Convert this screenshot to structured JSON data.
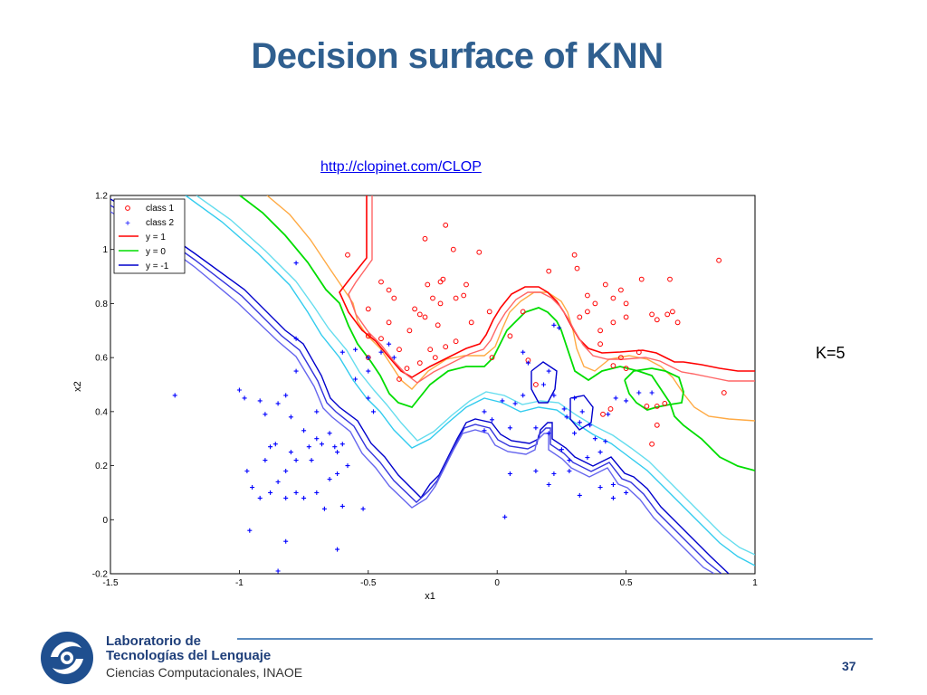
{
  "slide": {
    "title": "Decision surface of KNN",
    "link": "http://clopinet.com/CLOP",
    "k_label": "K=5",
    "page_number": "37"
  },
  "footer": {
    "org_line1": "Laboratorio de",
    "org_line2": "Tecnologías del Lenguaje",
    "org_line3": "Ciencias Computacionales, INAOE"
  },
  "chart_data": {
    "type": "scatter",
    "xlabel": "x1",
    "ylabel": "x2",
    "xlim": [
      -1.5,
      1
    ],
    "ylim": [
      -0.2,
      1.2
    ],
    "xticks": [
      "-1.5",
      "-1",
      "-0.5",
      "0",
      "0.5",
      "1"
    ],
    "yticks": [
      "-0.2",
      "0",
      "0.2",
      "0.4",
      "0.6",
      "0.8",
      "1",
      "1.2"
    ],
    "legend_position": "top-left",
    "legend": [
      {
        "label": "class 1",
        "marker": "o",
        "color": "#ff0000"
      },
      {
        "label": "class 2",
        "marker": "+",
        "color": "#0000ff"
      },
      {
        "label": "y = 1",
        "marker": "line",
        "color": "#ff0000"
      },
      {
        "label": "y = 0",
        "marker": "line",
        "color": "#00dd00"
      },
      {
        "label": "y = -1",
        "marker": "line",
        "color": "#0000cc"
      }
    ],
    "series": [
      {
        "name": "class 1",
        "color": "#ff0000",
        "points": [
          [
            -0.58,
            0.98
          ],
          [
            -0.28,
            1.04
          ],
          [
            -0.2,
            1.09
          ],
          [
            -0.17,
            1.0
          ],
          [
            -0.07,
            0.99
          ],
          [
            -0.45,
            0.88
          ],
          [
            -0.42,
            0.85
          ],
          [
            -0.4,
            0.82
          ],
          [
            -0.5,
            0.78
          ],
          [
            -0.42,
            0.73
          ],
          [
            -0.5,
            0.68
          ],
          [
            -0.27,
            0.87
          ],
          [
            -0.22,
            0.88
          ],
          [
            -0.21,
            0.89
          ],
          [
            -0.12,
            0.87
          ],
          [
            -0.25,
            0.82
          ],
          [
            -0.22,
            0.8
          ],
          [
            -0.16,
            0.82
          ],
          [
            -0.13,
            0.83
          ],
          [
            -0.3,
            0.76
          ],
          [
            -0.32,
            0.78
          ],
          [
            -0.28,
            0.75
          ],
          [
            -0.23,
            0.72
          ],
          [
            -0.34,
            0.7
          ],
          [
            -0.2,
            0.64
          ],
          [
            -0.26,
            0.63
          ],
          [
            -0.24,
            0.6
          ],
          [
            -0.16,
            0.66
          ],
          [
            -0.45,
            0.67
          ],
          [
            -0.5,
            0.6
          ],
          [
            -0.38,
            0.63
          ],
          [
            -0.3,
            0.58
          ],
          [
            -0.03,
            0.77
          ],
          [
            -0.1,
            0.73
          ],
          [
            -0.02,
            0.6
          ],
          [
            0.05,
            0.68
          ],
          [
            0.1,
            0.77
          ],
          [
            0.2,
            0.92
          ],
          [
            0.3,
            0.98
          ],
          [
            0.31,
            0.93
          ],
          [
            0.35,
            0.83
          ],
          [
            0.38,
            0.8
          ],
          [
            0.42,
            0.87
          ],
          [
            0.45,
            0.82
          ],
          [
            0.48,
            0.85
          ],
          [
            0.5,
            0.8
          ],
          [
            0.32,
            0.75
          ],
          [
            0.35,
            0.77
          ],
          [
            0.4,
            0.7
          ],
          [
            0.45,
            0.73
          ],
          [
            0.5,
            0.75
          ],
          [
            0.4,
            0.65
          ],
          [
            0.48,
            0.6
          ],
          [
            0.55,
            0.62
          ],
          [
            0.56,
            0.89
          ],
          [
            0.6,
            0.76
          ],
          [
            0.62,
            0.74
          ],
          [
            0.66,
            0.76
          ],
          [
            0.67,
            0.89
          ],
          [
            0.68,
            0.77
          ],
          [
            0.7,
            0.73
          ],
          [
            0.86,
            0.96
          ],
          [
            0.45,
            0.57
          ],
          [
            0.5,
            0.56
          ],
          [
            0.58,
            0.42
          ],
          [
            0.62,
            0.42
          ],
          [
            0.65,
            0.43
          ],
          [
            0.62,
            0.35
          ],
          [
            0.6,
            0.28
          ],
          [
            0.88,
            0.47
          ],
          [
            0.41,
            0.39
          ],
          [
            0.44,
            0.41
          ],
          [
            -0.38,
            0.52
          ],
          [
            -0.35,
            0.56
          ],
          [
            0.12,
            0.59
          ],
          [
            0.15,
            0.5
          ]
        ]
      },
      {
        "name": "class 2",
        "color": "#0000ff",
        "points": [
          [
            -0.78,
            0.95
          ],
          [
            -1.25,
            0.46
          ],
          [
            -1.0,
            0.48
          ],
          [
            -0.98,
            0.45
          ],
          [
            -0.92,
            0.44
          ],
          [
            -0.9,
            0.39
          ],
          [
            -0.85,
            0.43
          ],
          [
            -0.82,
            0.46
          ],
          [
            -0.8,
            0.38
          ],
          [
            -0.7,
            0.4
          ],
          [
            -0.75,
            0.33
          ],
          [
            -0.7,
            0.3
          ],
          [
            -0.68,
            0.28
          ],
          [
            -0.73,
            0.27
          ],
          [
            -0.86,
            0.28
          ],
          [
            -0.88,
            0.27
          ],
          [
            -0.8,
            0.25
          ],
          [
            -0.78,
            0.22
          ],
          [
            -0.72,
            0.22
          ],
          [
            -0.65,
            0.32
          ],
          [
            -0.63,
            0.27
          ],
          [
            -0.6,
            0.28
          ],
          [
            -0.62,
            0.25
          ],
          [
            -0.58,
            0.2
          ],
          [
            -0.62,
            0.17
          ],
          [
            -0.65,
            0.15
          ],
          [
            -0.7,
            0.1
          ],
          [
            -0.75,
            0.08
          ],
          [
            -0.78,
            0.1
          ],
          [
            -0.82,
            0.08
          ],
          [
            -0.88,
            0.1
          ],
          [
            -0.92,
            0.08
          ],
          [
            -0.95,
            0.12
          ],
          [
            -0.97,
            0.18
          ],
          [
            -0.9,
            0.22
          ],
          [
            -0.82,
            0.18
          ],
          [
            -0.85,
            0.14
          ],
          [
            -0.67,
            0.04
          ],
          [
            -0.6,
            0.05
          ],
          [
            -0.52,
            0.04
          ],
          [
            -0.62,
            -0.11
          ],
          [
            -0.82,
            -0.08
          ],
          [
            -0.96,
            -0.04
          ],
          [
            -0.85,
            -0.19
          ],
          [
            -0.78,
            0.55
          ],
          [
            -0.78,
            0.67
          ],
          [
            -0.6,
            0.62
          ],
          [
            -0.55,
            0.63
          ],
          [
            -0.5,
            0.6
          ],
          [
            -0.45,
            0.62
          ],
          [
            -0.4,
            0.6
          ],
          [
            -0.5,
            0.55
          ],
          [
            -0.55,
            0.52
          ],
          [
            -0.5,
            0.45
          ],
          [
            -0.48,
            0.4
          ],
          [
            -0.42,
            0.65
          ],
          [
            -0.05,
            0.4
          ],
          [
            -0.02,
            0.37
          ],
          [
            0.02,
            0.44
          ],
          [
            0.05,
            0.34
          ],
          [
            0.07,
            0.43
          ],
          [
            0.1,
            0.46
          ],
          [
            0.12,
            0.58
          ],
          [
            0.1,
            0.62
          ],
          [
            0.18,
            0.5
          ],
          [
            0.2,
            0.55
          ],
          [
            0.22,
            0.72
          ],
          [
            0.24,
            0.71
          ],
          [
            0.22,
            0.46
          ],
          [
            0.26,
            0.41
          ],
          [
            0.27,
            0.38
          ],
          [
            0.3,
            0.45
          ],
          [
            0.33,
            0.4
          ],
          [
            0.32,
            0.36
          ],
          [
            0.3,
            0.32
          ],
          [
            0.36,
            0.35
          ],
          [
            0.38,
            0.3
          ],
          [
            0.4,
            0.25
          ],
          [
            0.42,
            0.29
          ],
          [
            0.43,
            0.39
          ],
          [
            0.46,
            0.45
          ],
          [
            0.5,
            0.44
          ],
          [
            0.55,
            0.47
          ],
          [
            0.6,
            0.47
          ],
          [
            0.05,
            0.17
          ],
          [
            0.15,
            0.18
          ],
          [
            0.22,
            0.17
          ],
          [
            0.2,
            0.13
          ],
          [
            0.28,
            0.18
          ],
          [
            0.32,
            0.09
          ],
          [
            0.4,
            0.12
          ],
          [
            0.45,
            0.08
          ],
          [
            0.5,
            0.1
          ],
          [
            0.45,
            0.13
          ],
          [
            0.03,
            0.01
          ],
          [
            -0.05,
            0.33
          ],
          [
            0.15,
            0.34
          ],
          [
            0.2,
            0.32
          ],
          [
            0.25,
            0.26
          ],
          [
            0.28,
            0.22
          ],
          [
            0.35,
            0.23
          ]
        ]
      }
    ],
    "contours": [
      {
        "name": "y = 1",
        "color": "#ff0000"
      },
      {
        "name": "y = 0",
        "color": "#00dd00"
      },
      {
        "name": "y = -1",
        "color": "#0000cc"
      }
    ]
  }
}
